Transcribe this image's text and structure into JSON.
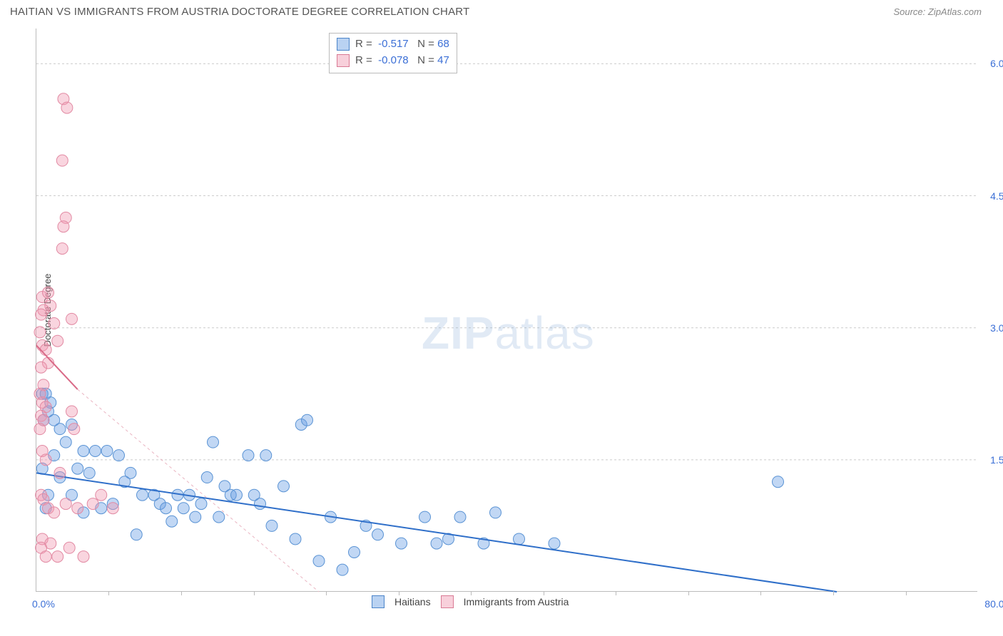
{
  "header": {
    "title": "HAITIAN VS IMMIGRANTS FROM AUSTRIA DOCTORATE DEGREE CORRELATION CHART",
    "source_label": "Source: ",
    "source_name": "ZipAtlas.com"
  },
  "chart": {
    "type": "scatter",
    "background_color": "#ffffff",
    "grid_color": "#cccccc",
    "y_axis_label": "Doctorate Degree",
    "xlim": [
      0,
      80
    ],
    "ylim": [
      0,
      6.4
    ],
    "x_ticks_minor": [
      6.15,
      12.3,
      18.46,
      24.6,
      30.77,
      36.92,
      43.07,
      49.23,
      55.38,
      61.54,
      67.69,
      73.85
    ],
    "x_tick_labels": [
      {
        "pos": 0,
        "text": "0.0%"
      },
      {
        "pos": 80,
        "text": "80.0%"
      }
    ],
    "y_ticks": [
      {
        "pos": 1.5,
        "text": "1.5%"
      },
      {
        "pos": 3.0,
        "text": "3.0%"
      },
      {
        "pos": 4.5,
        "text": "4.5%"
      },
      {
        "pos": 6.0,
        "text": "6.0%"
      }
    ],
    "series": [
      {
        "name": "Haitians",
        "color_fill": "rgba(99,155,227,0.40)",
        "color_stroke": "#5a93d4",
        "marker_radius": 8,
        "stats": {
          "R": "-0.517",
          "N": "68"
        },
        "regression": {
          "x1": 0,
          "y1": 1.35,
          "x2": 68,
          "y2": 0.0,
          "solid": true,
          "stroke": "#2f6fc9",
          "width": 2
        },
        "regression_dash": null,
        "points": [
          [
            0.5,
            2.25
          ],
          [
            0.8,
            2.25
          ],
          [
            1.2,
            2.15
          ],
          [
            1.0,
            2.05
          ],
          [
            0.6,
            1.95
          ],
          [
            2.0,
            1.85
          ],
          [
            1.5,
            1.95
          ],
          [
            3.0,
            1.9
          ],
          [
            2.5,
            1.7
          ],
          [
            4.0,
            1.6
          ],
          [
            5.0,
            1.6
          ],
          [
            6.0,
            1.6
          ],
          [
            3.5,
            1.4
          ],
          [
            4.5,
            1.35
          ],
          [
            7.0,
            1.55
          ],
          [
            8.0,
            1.35
          ],
          [
            9.0,
            1.1
          ],
          [
            10.0,
            1.1
          ],
          [
            10.5,
            1.0
          ],
          [
            11.0,
            0.95
          ],
          [
            12.0,
            1.1
          ],
          [
            12.5,
            0.95
          ],
          [
            13.0,
            1.1
          ],
          [
            14.0,
            1.0
          ],
          [
            15.0,
            1.7
          ],
          [
            15.5,
            0.85
          ],
          [
            16.0,
            1.2
          ],
          [
            16.5,
            1.1
          ],
          [
            17.0,
            1.1
          ],
          [
            18.0,
            1.55
          ],
          [
            18.5,
            1.1
          ],
          [
            19.0,
            1.0
          ],
          [
            19.5,
            1.55
          ],
          [
            20.0,
            0.75
          ],
          [
            21.0,
            1.2
          ],
          [
            22.0,
            0.6
          ],
          [
            22.5,
            1.9
          ],
          [
            23.0,
            1.95
          ],
          [
            24.0,
            0.35
          ],
          [
            25.0,
            0.85
          ],
          [
            26.0,
            0.25
          ],
          [
            27.0,
            0.45
          ],
          [
            28.0,
            0.75
          ],
          [
            29.0,
            0.65
          ],
          [
            31.0,
            0.55
          ],
          [
            33.0,
            0.85
          ],
          [
            34.0,
            0.55
          ],
          [
            35.0,
            0.6
          ],
          [
            36.0,
            0.85
          ],
          [
            38.0,
            0.55
          ],
          [
            39.0,
            0.9
          ],
          [
            41.0,
            0.6
          ],
          [
            44.0,
            0.55
          ],
          [
            63.0,
            1.25
          ],
          [
            7.5,
            1.25
          ],
          [
            6.5,
            1.0
          ],
          [
            5.5,
            0.95
          ],
          [
            8.5,
            0.65
          ],
          [
            11.5,
            0.8
          ],
          [
            13.5,
            0.85
          ],
          [
            14.5,
            1.3
          ],
          [
            3.0,
            1.1
          ],
          [
            4.0,
            0.9
          ],
          [
            2.0,
            1.3
          ],
          [
            1.0,
            1.1
          ],
          [
            0.8,
            0.95
          ],
          [
            0.5,
            1.4
          ],
          [
            1.5,
            1.55
          ]
        ]
      },
      {
        "name": "Immigrants from Austria",
        "color_fill": "rgba(240,150,175,0.40)",
        "color_stroke": "#e28aa3",
        "marker_radius": 8,
        "stats": {
          "R": "-0.078",
          "N": "47"
        },
        "regression": {
          "x1": 0,
          "y1": 2.8,
          "x2": 3.5,
          "y2": 2.3,
          "solid": true,
          "stroke": "#d96a87",
          "width": 2
        },
        "regression_dash": {
          "x1": 3.5,
          "y1": 2.3,
          "x2": 24.0,
          "y2": 0.0,
          "stroke": "#eab5c2",
          "width": 1
        },
        "points": [
          [
            2.3,
            5.6
          ],
          [
            2.6,
            5.5
          ],
          [
            2.2,
            4.9
          ],
          [
            2.5,
            4.25
          ],
          [
            2.3,
            4.15
          ],
          [
            2.2,
            3.9
          ],
          [
            0.5,
            3.35
          ],
          [
            1.0,
            3.4
          ],
          [
            1.2,
            3.25
          ],
          [
            0.6,
            3.2
          ],
          [
            0.4,
            3.15
          ],
          [
            0.3,
            2.95
          ],
          [
            0.5,
            2.8
          ],
          [
            0.8,
            2.75
          ],
          [
            1.0,
            2.6
          ],
          [
            0.4,
            2.55
          ],
          [
            0.6,
            2.35
          ],
          [
            0.3,
            2.25
          ],
          [
            0.5,
            2.15
          ],
          [
            0.8,
            2.1
          ],
          [
            0.4,
            2.0
          ],
          [
            0.6,
            1.95
          ],
          [
            0.3,
            1.85
          ],
          [
            3.0,
            2.05
          ],
          [
            3.2,
            1.85
          ],
          [
            0.5,
            1.6
          ],
          [
            0.8,
            1.5
          ],
          [
            2.0,
            1.35
          ],
          [
            2.5,
            1.0
          ],
          [
            0.4,
            1.1
          ],
          [
            0.6,
            1.05
          ],
          [
            1.0,
            0.95
          ],
          [
            1.5,
            0.9
          ],
          [
            3.5,
            0.95
          ],
          [
            4.8,
            1.0
          ],
          [
            5.5,
            1.1
          ],
          [
            6.5,
            0.95
          ],
          [
            0.5,
            0.6
          ],
          [
            1.2,
            0.55
          ],
          [
            2.8,
            0.5
          ],
          [
            1.8,
            0.4
          ],
          [
            4.0,
            0.4
          ],
          [
            0.4,
            0.5
          ],
          [
            0.8,
            0.4
          ],
          [
            1.5,
            3.05
          ],
          [
            1.8,
            2.85
          ],
          [
            3.0,
            3.1
          ]
        ]
      }
    ],
    "bottom_legend": [
      {
        "swatch": "blue",
        "label": "Haitians"
      },
      {
        "swatch": "pink",
        "label": "Immigrants from Austria"
      }
    ],
    "watermark": {
      "bold": "ZIP",
      "light": "atlas"
    }
  }
}
